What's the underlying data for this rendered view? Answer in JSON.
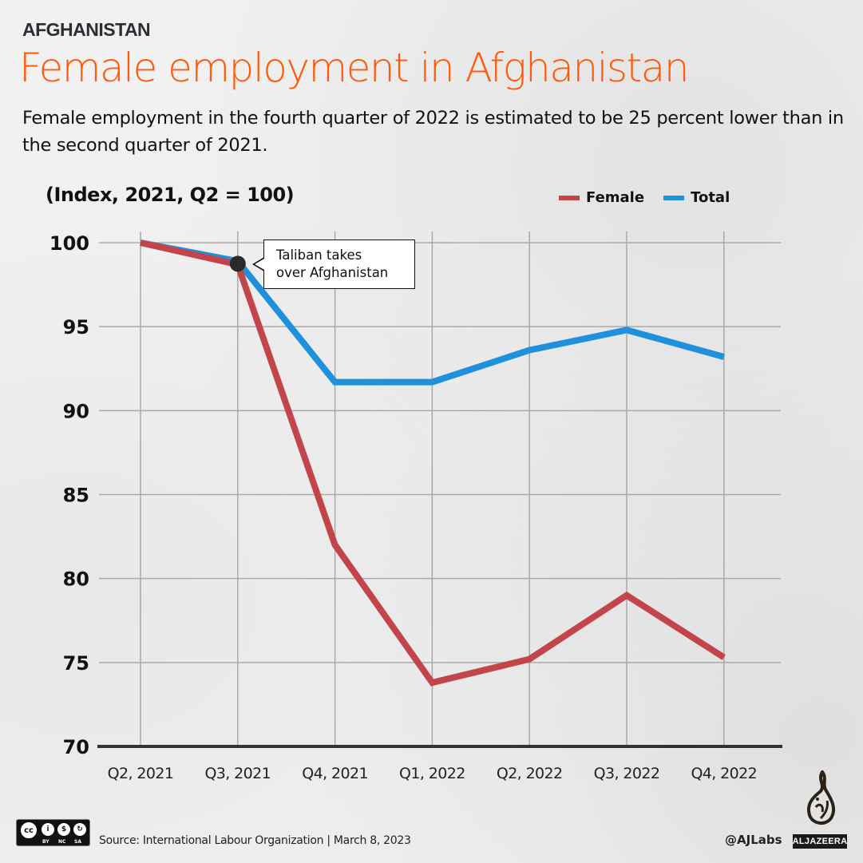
{
  "header": {
    "kicker": "AFGHANISTAN",
    "title": "Female employment in Afghanistan",
    "subtitle": "Female employment in the fourth quarter of 2022 is estimated to be 25 percent lower than in the second quarter of 2021."
  },
  "legend": [
    {
      "label": "Female",
      "color": "#c1454b"
    },
    {
      "label": "Total",
      "color": "#1e90dc"
    }
  ],
  "annotation": {
    "line1": "Taliban takes",
    "line2": "over Afghanistan",
    "point": "Q3, 2021"
  },
  "footer": {
    "license": {
      "cc": "cc",
      "labels": [
        "BY",
        "NC",
        "SA"
      ]
    },
    "source": "Source: International Labour Organization  |  March 8, 2023",
    "handle": "@AJLabs",
    "brand": "ALJAZEERA"
  },
  "chart_data": {
    "type": "line",
    "title": "Female employment in Afghanistan",
    "subtitle": "Female employment in the fourth quarter of 2022 is estimated to be 25 percent lower than in the second quarter of 2021.",
    "ylabel": "(Index, 2021, Q2 = 100)",
    "xlabel": "",
    "categories": [
      "Q2, 2021",
      "Q3, 2021",
      "Q4, 2021",
      "Q1, 2022",
      "Q2, 2022",
      "Q3, 2022",
      "Q4, 2022"
    ],
    "series": [
      {
        "name": "Female",
        "color": "#c1454b",
        "values": [
          100,
          98.7,
          82.0,
          73.8,
          75.2,
          79.0,
          75.3
        ]
      },
      {
        "name": "Total",
        "color": "#1e90dc",
        "values": [
          100,
          98.9,
          91.7,
          91.7,
          93.6,
          94.8,
          93.2
        ]
      }
    ],
    "ylim": [
      70,
      100
    ],
    "yticks": [
      100,
      95,
      90,
      85,
      80,
      75,
      70
    ],
    "grid": true,
    "legend_position": "top-right",
    "annotations": [
      {
        "x": "Q3, 2021",
        "text": "Taliban takes over Afghanistan"
      }
    ]
  }
}
